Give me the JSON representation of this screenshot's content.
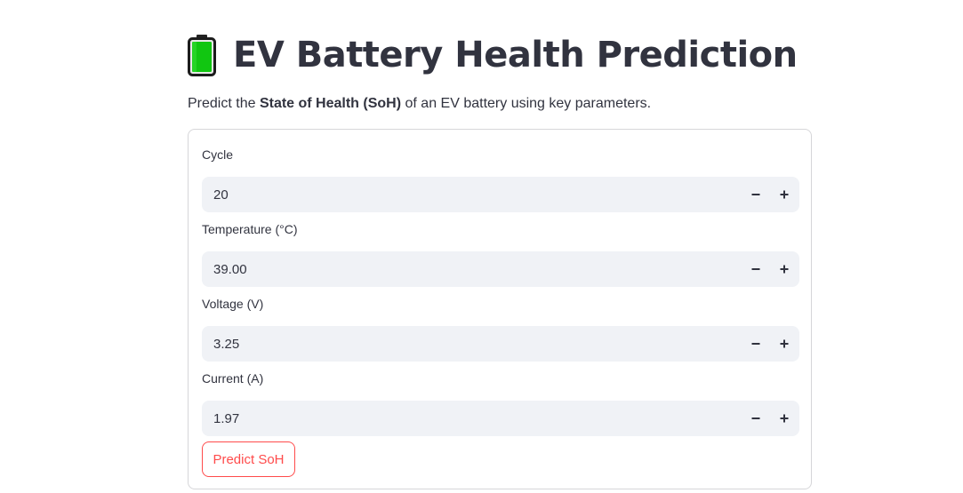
{
  "header": {
    "icon": "battery-icon",
    "title": "EV Battery Health Prediction"
  },
  "subtitle": {
    "prefix": "Predict the ",
    "bold": "State of Health (SoH)",
    "suffix": " of an EV battery using key parameters."
  },
  "form": {
    "fields": [
      {
        "label": "Cycle",
        "value": "20"
      },
      {
        "label": "Temperature (°C)",
        "value": "39.00"
      },
      {
        "label": "Voltage (V)",
        "value": "3.25"
      },
      {
        "label": "Current (A)",
        "value": "1.97"
      }
    ],
    "submit_label": "Predict SoH"
  },
  "colors": {
    "accent": "#ff4b4b",
    "text": "#31333f",
    "input_bg": "#f0f2f6",
    "battery_fill": "#11c611"
  }
}
